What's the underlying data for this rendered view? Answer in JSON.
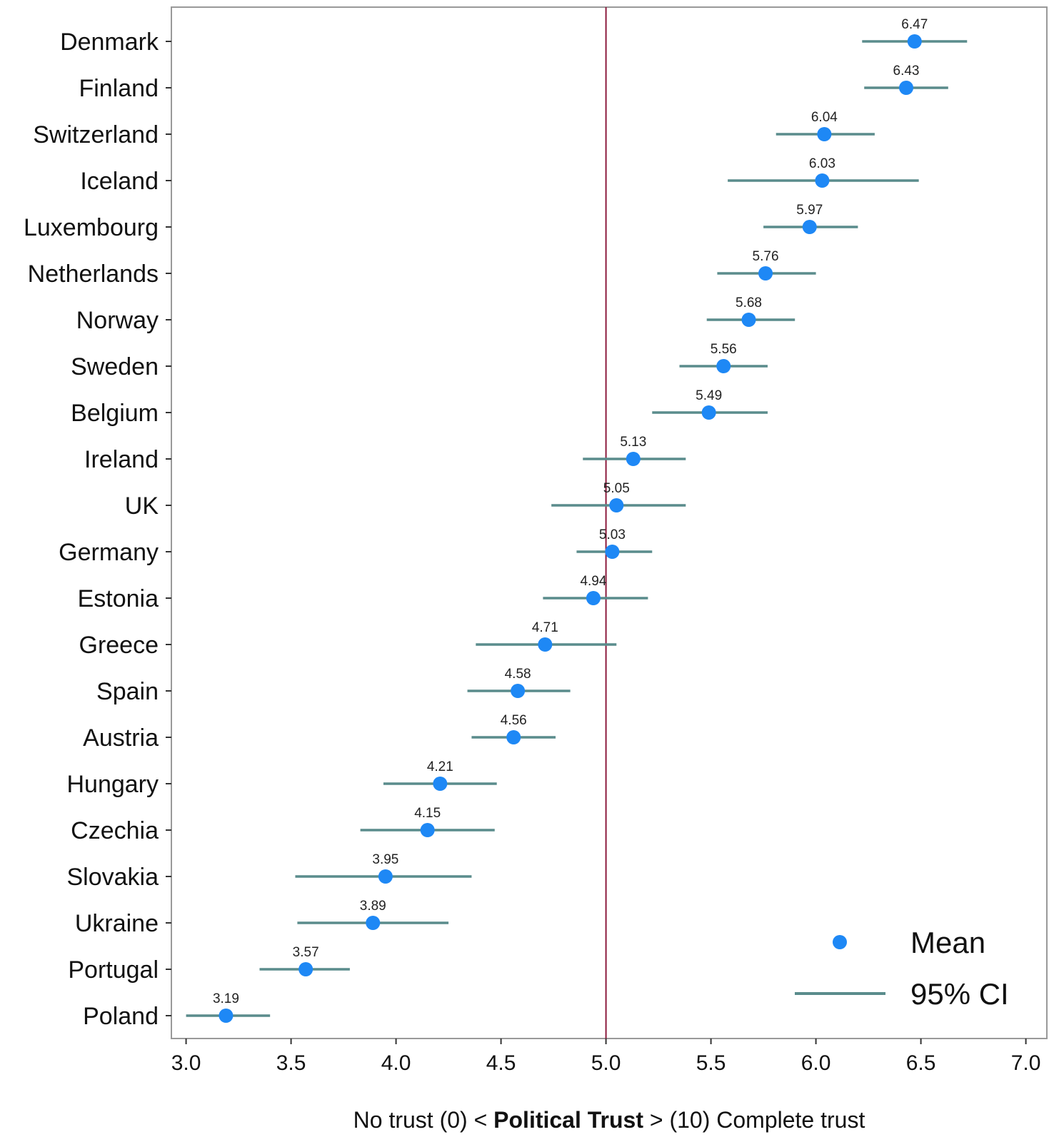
{
  "chart_data": {
    "type": "errorbar",
    "xlabel_parts": [
      "No trust (0) < ",
      "Political Trust",
      " > (10) Complete trust"
    ],
    "xlim": [
      2.93,
      7.1
    ],
    "xticks": [
      "3.0",
      "3.5",
      "4.0",
      "4.5",
      "5.0",
      "5.5",
      "6.0",
      "6.5",
      "7.0"
    ],
    "reference_line_x": 5.0,
    "grid": false,
    "legend": {
      "position": "bottom-right",
      "entries": [
        {
          "label": "Mean",
          "marker": "dot"
        },
        {
          "label": "95% CI",
          "marker": "line"
        }
      ]
    },
    "colors": {
      "mean_dot": "#1e88f5",
      "ci_line": "#5a8c8c",
      "reference_line": "#8b1a3c",
      "axis": "#999999"
    },
    "rows": [
      {
        "country": "Denmark",
        "mean": 6.47,
        "label": "6.47",
        "ci": [
          6.22,
          6.72
        ]
      },
      {
        "country": "Finland",
        "mean": 6.43,
        "label": "6.43",
        "ci": [
          6.23,
          6.63
        ]
      },
      {
        "country": "Switzerland",
        "mean": 6.04,
        "label": "6.04",
        "ci": [
          5.81,
          6.28
        ]
      },
      {
        "country": "Iceland",
        "mean": 6.03,
        "label": "6.03",
        "ci": [
          5.58,
          6.49
        ]
      },
      {
        "country": "Luxembourg",
        "mean": 5.97,
        "label": "5.97",
        "ci": [
          5.75,
          6.2
        ]
      },
      {
        "country": "Netherlands",
        "mean": 5.76,
        "label": "5.76",
        "ci": [
          5.53,
          6.0
        ]
      },
      {
        "country": "Norway",
        "mean": 5.68,
        "label": "5.68",
        "ci": [
          5.48,
          5.9
        ]
      },
      {
        "country": "Sweden",
        "mean": 5.56,
        "label": "5.56",
        "ci": [
          5.35,
          5.77
        ]
      },
      {
        "country": "Belgium",
        "mean": 5.49,
        "label": "5.49",
        "ci": [
          5.22,
          5.77
        ]
      },
      {
        "country": "Ireland",
        "mean": 5.13,
        "label": "5.13",
        "ci": [
          4.89,
          5.38
        ]
      },
      {
        "country": "UK",
        "mean": 5.05,
        "label": "5.05",
        "ci": [
          4.74,
          5.38
        ]
      },
      {
        "country": "Germany",
        "mean": 5.03,
        "label": "5.03",
        "ci": [
          4.86,
          5.22
        ]
      },
      {
        "country": "Estonia",
        "mean": 4.94,
        "label": "4.94",
        "ci": [
          4.7,
          5.2
        ]
      },
      {
        "country": "Greece",
        "mean": 4.71,
        "label": "4.71",
        "ci": [
          4.38,
          5.05
        ]
      },
      {
        "country": "Spain",
        "mean": 4.58,
        "label": "4.58",
        "ci": [
          4.34,
          4.83
        ]
      },
      {
        "country": "Austria",
        "mean": 4.56,
        "label": "4.56",
        "ci": [
          4.36,
          4.76
        ]
      },
      {
        "country": "Hungary",
        "mean": 4.21,
        "label": "4.21",
        "ci": [
          3.94,
          4.48
        ]
      },
      {
        "country": "Czechia",
        "mean": 4.15,
        "label": "4.15",
        "ci": [
          3.83,
          4.47
        ]
      },
      {
        "country": "Slovakia",
        "mean": 3.95,
        "label": "3.95",
        "ci": [
          3.52,
          4.36
        ]
      },
      {
        "country": "Ukraine",
        "mean": 3.89,
        "label": "3.89",
        "ci": [
          3.53,
          4.25
        ]
      },
      {
        "country": "Portugal",
        "mean": 3.57,
        "label": "3.57",
        "ci": [
          3.35,
          3.78
        ]
      },
      {
        "country": "Poland",
        "mean": 3.19,
        "label": "3.19",
        "ci": [
          3.0,
          3.4
        ]
      }
    ]
  }
}
